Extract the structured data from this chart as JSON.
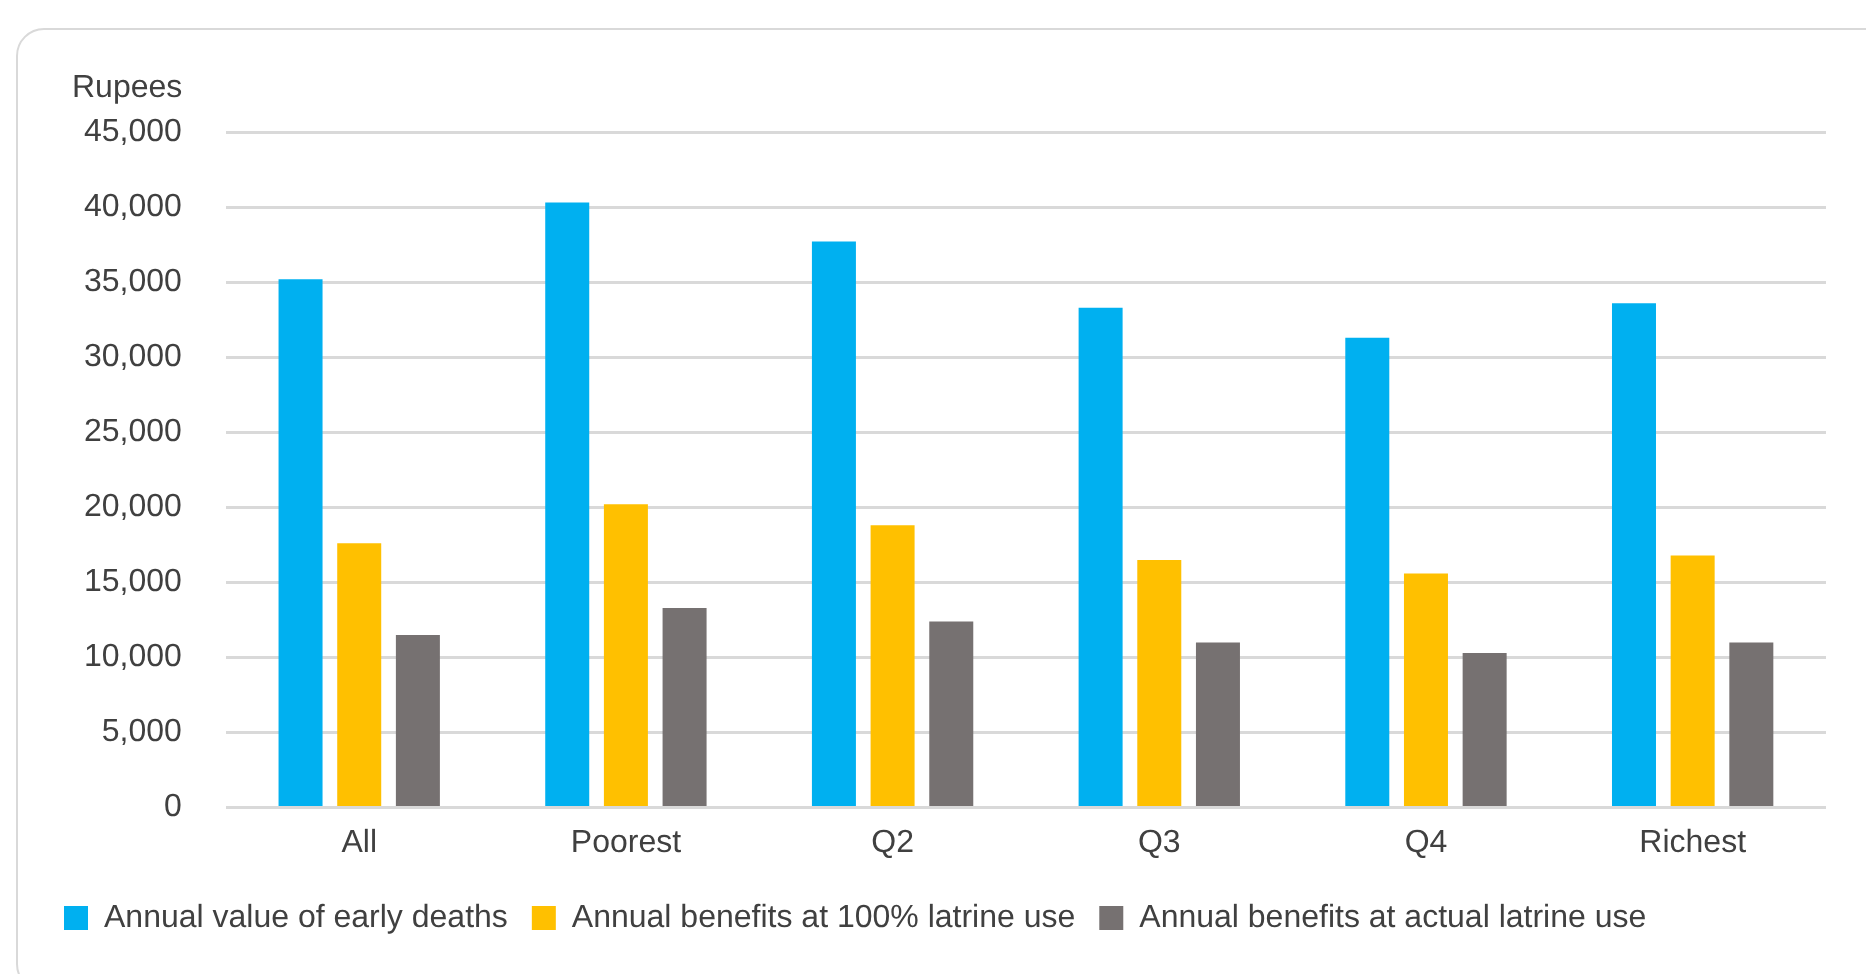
{
  "chart_data": {
    "type": "bar",
    "ylabel": "Rupees",
    "categories": [
      "All",
      "Poorest",
      "Q2",
      "Q3",
      "Q4",
      "Richest"
    ],
    "series": [
      {
        "name": "Annual value of early deaths",
        "color": "#00b0f0",
        "values": [
          35200,
          40300,
          37700,
          33300,
          31300,
          33600
        ]
      },
      {
        "name": "Annual benefits at 100% latrine use",
        "color": "#ffc000",
        "values": [
          17600,
          20200,
          18800,
          16500,
          15600,
          16800
        ]
      },
      {
        "name": "Annual benefits at actual latrine use",
        "color": "#767171",
        "values": [
          11500,
          13300,
          12400,
          11000,
          10300,
          11000
        ]
      }
    ],
    "ylim": [
      0,
      45000
    ],
    "yticks": [
      0,
      {
        "value": 5000,
        "label": "5,000"
      },
      {
        "value": 10000,
        "label": "10,000"
      },
      {
        "value": 15000,
        "label": "15,000"
      },
      {
        "value": 20000,
        "label": "20,000"
      },
      {
        "value": 25000,
        "label": "25,000"
      },
      {
        "value": 30000,
        "label": "30,000"
      },
      {
        "value": 35000,
        "label": "35,000"
      },
      {
        "value": 40000,
        "label": "40,000"
      },
      {
        "value": 45000,
        "label": "45,000"
      }
    ],
    "grid": "y",
    "legend": "bottom"
  }
}
